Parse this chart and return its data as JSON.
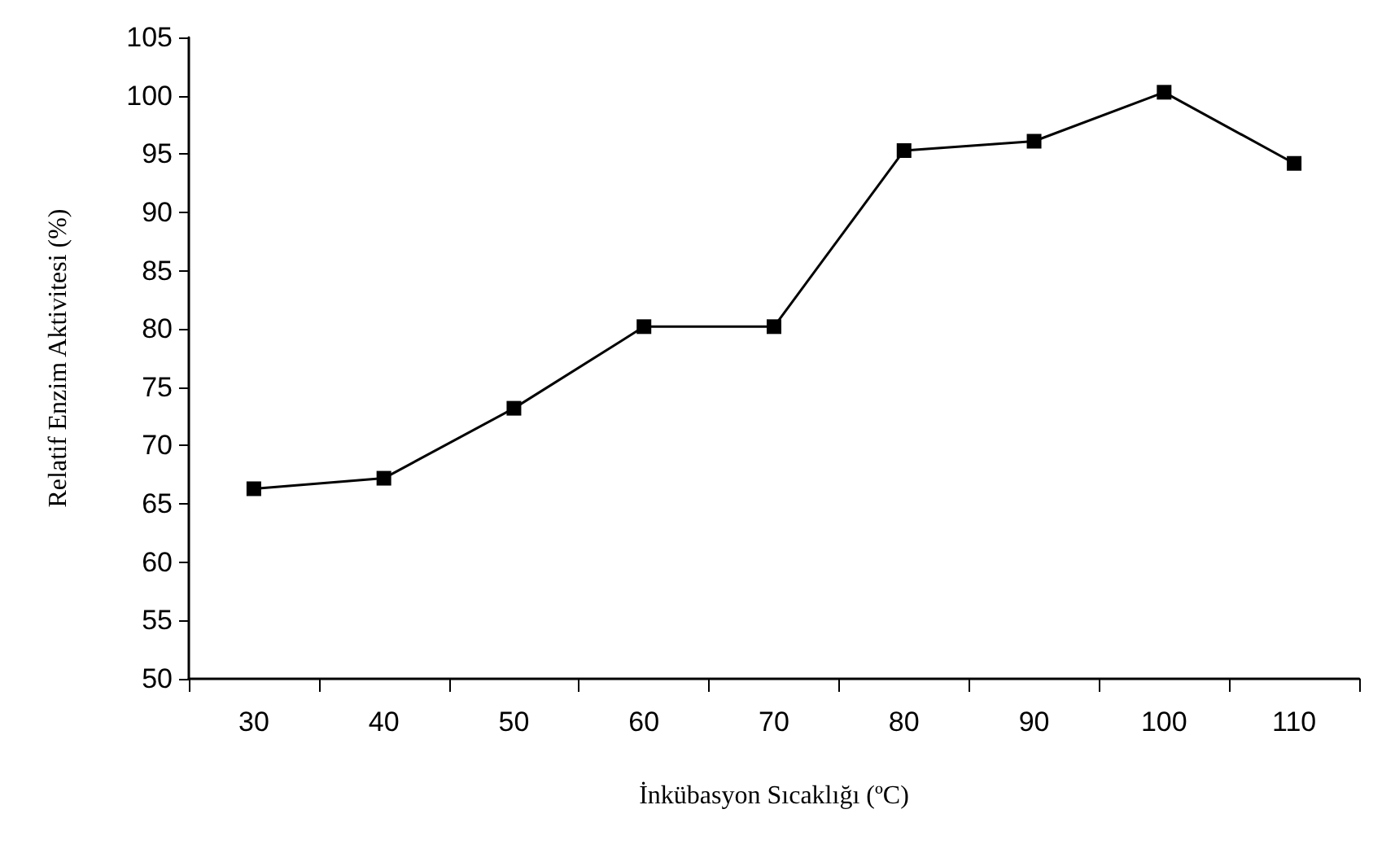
{
  "chart_data": {
    "type": "line",
    "xlabel": "İnkübasyon Sıcaklığı (ºC)",
    "ylabel": "Relatif Enzim Aktivitesi (%)",
    "categories": [
      "30",
      "40",
      "50",
      "60",
      "70",
      "80",
      "90",
      "100",
      "110"
    ],
    "series": [
      {
        "color": "#000000",
        "values": [
          66.3,
          67.2,
          73.2,
          80.2,
          80.2,
          95.3,
          96.1,
          100.3,
          94.2
        ]
      }
    ],
    "ylim": [
      50,
      105
    ],
    "yticks": [
      50,
      55,
      60,
      65,
      70,
      75,
      80,
      85,
      90,
      95,
      100,
      105
    ],
    "marker": "square",
    "line_style": "solid"
  }
}
